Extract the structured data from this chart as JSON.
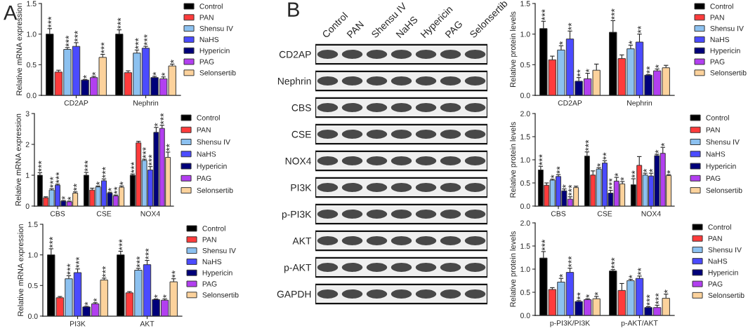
{
  "chart_data": [
    {
      "type": "bar",
      "annotations": [
        "A"
      ],
      "ylabel": "Relative mRNA expression",
      "categories": [
        "CD2AP",
        "Nephrin"
      ],
      "ylim": [
        0,
        1.5
      ],
      "yticks": [
        {
          "value": 0,
          "label": "0.0"
        },
        0.5,
        {
          "value": 1,
          "label": "1.0"
        },
        1.5
      ],
      "legend": "right",
      "series": [
        {
          "name": "Control",
          "color": "#000000",
          "values": [
            1.0,
            1.0
          ],
          "errors": [
            0.09,
            0.07
          ],
          "value_labels": [
            "***",
            "***"
          ]
        },
        {
          "name": "PAN",
          "color": "#ff3b3b",
          "values": [
            0.38,
            0.37
          ],
          "errors": [
            0.03,
            0.03
          ]
        },
        {
          "name": "Shensu IV",
          "color": "#8cc1f0",
          "values": [
            0.75,
            0.69
          ],
          "errors": [
            0.03,
            0.05
          ],
          "value_labels": [
            "***",
            "***"
          ]
        },
        {
          "name": "NaHS",
          "color": "#4b4bff",
          "values": [
            0.8,
            0.77
          ],
          "errors": [
            0.06,
            0.03
          ],
          "value_labels": [
            "***",
            "***"
          ]
        },
        {
          "name": "Hypericin",
          "color": "#00007a",
          "values": [
            0.25,
            0.29
          ],
          "errors": [
            0.01,
            0.02
          ],
          "value_labels": [
            "*",
            "*"
          ]
        },
        {
          "name": "PAG",
          "color": "#b23ff0",
          "values": [
            0.29,
            0.27
          ],
          "errors": [
            0.02,
            0.03
          ],
          "value_labels": [
            "*",
            "*"
          ]
        },
        {
          "name": "Selonsertib",
          "color": "#fcd29c",
          "values": [
            0.62,
            0.48
          ],
          "errors": [
            0.05,
            0.03
          ],
          "value_labels": [
            "***",
            "*"
          ]
        }
      ]
    },
    {
      "type": "bar",
      "ylabel": "Relative mRNA expression",
      "categories": [
        "CBS",
        "CSE",
        "NOX4"
      ],
      "ylim": [
        0,
        3
      ],
      "yticks": [
        0,
        1,
        2,
        3
      ],
      "legend": "right",
      "series": [
        {
          "name": "Control",
          "color": "#000000",
          "values": [
            1.0,
            1.0,
            1.0
          ],
          "errors": [
            0.08,
            0.09,
            0.04
          ],
          "value_labels": [
            "***",
            "***",
            "***"
          ]
        },
        {
          "name": "PAN",
          "color": "#ff3b3b",
          "values": [
            0.27,
            0.52,
            2.05
          ],
          "errors": [
            0.03,
            0.06,
            0.05
          ]
        },
        {
          "name": "Shensu IV",
          "color": "#8cc1f0",
          "values": [
            0.52,
            0.62,
            1.48
          ],
          "errors": [
            0.04,
            0.03,
            0.04
          ],
          "value_labels": [
            "***",
            "*",
            "***"
          ]
        },
        {
          "name": "NaHS",
          "color": "#4b4bff",
          "values": [
            0.68,
            0.82,
            1.17
          ],
          "errors": [
            0.03,
            0.06,
            0.11
          ],
          "value_labels": [
            "***",
            "***",
            "***"
          ]
        },
        {
          "name": "Hypericin",
          "color": "#00007a",
          "values": [
            0.16,
            0.42,
            2.39
          ],
          "errors": [
            0.02,
            0.03,
            0.16
          ],
          "value_labels": [
            "*",
            "*",
            "*"
          ]
        },
        {
          "name": "PAG",
          "color": "#b23ff0",
          "values": [
            0.14,
            0.33,
            2.52
          ],
          "errors": [
            0.02,
            0.03,
            0.1
          ],
          "value_labels": [
            "*",
            "**",
            "***"
          ]
        },
        {
          "name": "Selonsertib",
          "color": "#fcd29c",
          "values": [
            0.42,
            0.61,
            1.58
          ],
          "errors": [
            0.04,
            0.04,
            0.17
          ],
          "value_labels": [
            "**",
            "*",
            "**"
          ]
        }
      ]
    },
    {
      "type": "bar",
      "ylabel": "Relative mRNA expression",
      "categories": [
        "PI3K",
        "AKT"
      ],
      "ylim": [
        0,
        1.5
      ],
      "yticks": [
        {
          "value": 0,
          "label": "0.0"
        },
        0.5,
        {
          "value": 1,
          "label": "1.0"
        },
        1.5
      ],
      "legend": "right",
      "series": [
        {
          "name": "Control",
          "color": "#000000",
          "values": [
            1.0,
            1.0
          ],
          "errors": [
            0.1,
            0.06
          ],
          "value_labels": [
            "***",
            "***"
          ]
        },
        {
          "name": "PAN",
          "color": "#ff3b3b",
          "values": [
            0.3,
            0.38
          ],
          "errors": [
            0.02,
            0.02
          ]
        },
        {
          "name": "Shensu IV",
          "color": "#8cc1f0",
          "values": [
            0.61,
            0.75
          ],
          "errors": [
            0.05,
            0.03
          ],
          "value_labels": [
            "***",
            "***"
          ]
        },
        {
          "name": "NaHS",
          "color": "#4b4bff",
          "values": [
            0.71,
            0.84
          ],
          "errors": [
            0.06,
            0.07
          ],
          "value_labels": [
            "***",
            "***"
          ]
        },
        {
          "name": "Hypericin",
          "color": "#00007a",
          "values": [
            0.15,
            0.27
          ],
          "errors": [
            0.01,
            0.01
          ],
          "value_labels": [
            "*",
            "*"
          ]
        },
        {
          "name": "PAG",
          "color": "#b23ff0",
          "values": [
            0.2,
            0.26
          ],
          "errors": [
            0.02,
            0.02
          ],
          "value_labels": [
            "*",
            "*"
          ]
        },
        {
          "name": "Selonsertib",
          "color": "#fcd29c",
          "values": [
            0.59,
            0.56
          ],
          "errors": [
            0.03,
            0.05
          ],
          "value_labels": [
            "***",
            "**"
          ]
        }
      ]
    },
    {
      "type": "other",
      "annotations": [
        "B"
      ],
      "categories": [
        "Control",
        "PAN",
        "Shensu IV",
        "NaHS",
        "Hypericin",
        "PAG",
        "Selonsertib"
      ],
      "y_categories": [
        "CD2AP",
        "Nephrin",
        "CBS",
        "CSE",
        "NOX4",
        "PI3K",
        "p-PI3K",
        "AKT",
        "p-AKT",
        "GAPDH"
      ]
    },
    {
      "type": "bar",
      "ylabel": "Relative protein levels",
      "categories": [
        "CD2AP",
        "Nephrin"
      ],
      "ylim": [
        0,
        1.5
      ],
      "yticks": [
        {
          "value": 0,
          "label": "0.0"
        },
        0.5,
        {
          "value": 1,
          "label": "1.0"
        },
        1.5
      ],
      "legend": "right",
      "series": [
        {
          "name": "Control",
          "color": "#000000",
          "values": [
            1.09,
            1.03
          ],
          "errors": [
            0.12,
            0.19
          ],
          "value_labels": [
            "***",
            "***"
          ]
        },
        {
          "name": "PAN",
          "color": "#ff3b3b",
          "values": [
            0.58,
            0.6
          ],
          "errors": [
            0.06,
            0.06
          ]
        },
        {
          "name": "Shensu IV",
          "color": "#8cc1f0",
          "values": [
            0.74,
            0.76
          ],
          "errors": [
            0.07,
            0.06
          ],
          "value_labels": [
            "*",
            "*"
          ]
        },
        {
          "name": "NaHS",
          "color": "#4b4bff",
          "values": [
            0.92,
            0.87
          ],
          "errors": [
            0.13,
            0.13
          ],
          "value_labels": [
            "**",
            "**"
          ]
        },
        {
          "name": "Hypericin",
          "color": "#00007a",
          "values": [
            0.23,
            0.33
          ],
          "errors": [
            0.06,
            0.01
          ],
          "value_labels": [
            "**",
            "**"
          ]
        },
        {
          "name": "PAG",
          "color": "#b23ff0",
          "values": [
            0.27,
            0.4
          ],
          "errors": [
            0.09,
            0.03
          ],
          "value_labels": [
            "*",
            "*"
          ]
        },
        {
          "name": "Selonsertib",
          "color": "#fcd29c",
          "values": [
            0.41,
            0.45
          ],
          "errors": [
            0.1,
            0.04
          ]
        }
      ]
    },
    {
      "type": "bar",
      "ylabel": "Relative protein levels",
      "categories": [
        "CBS",
        "CSE",
        "NOX4"
      ],
      "ylim": [
        0,
        2
      ],
      "yticks": [
        {
          "value": 0,
          "label": "0.0"
        },
        0.5,
        {
          "value": 1,
          "label": "1.0"
        },
        1.5,
        {
          "value": 2,
          "label": "2.0"
        }
      ],
      "legend": "right",
      "series": [
        {
          "name": "Control",
          "color": "#000000",
          "values": [
            0.78,
            1.08,
            0.46
          ],
          "errors": [
            0.08,
            0.09,
            0.13
          ],
          "value_labels": [
            "***",
            "***",
            "**"
          ]
        },
        {
          "name": "PAN",
          "color": "#ff3b3b",
          "values": [
            0.45,
            0.67,
            0.88
          ],
          "errors": [
            0.05,
            0.09,
            0.19
          ]
        },
        {
          "name": "Shensu IV",
          "color": "#8cc1f0",
          "values": [
            0.56,
            0.8,
            0.67
          ],
          "errors": [
            0.02,
            0.03,
            0.04
          ],
          "value_labels": [
            "*",
            "*",
            "*"
          ]
        },
        {
          "name": "NaHS",
          "color": "#4b4bff",
          "values": [
            0.64,
            0.93,
            0.65
          ],
          "errors": [
            0.04,
            0.05,
            0.06
          ],
          "value_labels": [
            "**",
            "**",
            "*"
          ]
        },
        {
          "name": "Hypericin",
          "color": "#00007a",
          "values": [
            0.33,
            0.28,
            1.09
          ],
          "errors": [
            0.04,
            0.06,
            0.03
          ],
          "value_labels": [
            "*",
            "***",
            "*"
          ]
        },
        {
          "name": "PAG",
          "color": "#b23ff0",
          "values": [
            0.15,
            0.54,
            1.14
          ],
          "errors": [
            0.05,
            0.08,
            0.13
          ],
          "value_labels": [
            "***",
            "*",
            "*"
          ]
        },
        {
          "name": "Selonsertib",
          "color": "#fcd29c",
          "values": [
            0.4,
            0.48,
            0.66
          ],
          "errors": [
            0.03,
            0.05,
            0.02
          ],
          "value_labels": [
            null,
            "*",
            "*"
          ]
        }
      ]
    },
    {
      "type": "bar",
      "ylabel": "Relative protein levels",
      "categories": [
        "p-PI3K/PI3K",
        "p-AKT/AKT"
      ],
      "ylim": [
        0,
        2
      ],
      "yticks": [
        {
          "value": 0,
          "label": "0.0"
        },
        0.5,
        {
          "value": 1,
          "label": "1.0"
        },
        1.5,
        {
          "value": 2,
          "label": "2.0"
        }
      ],
      "legend": "right",
      "series": [
        {
          "name": "Control",
          "color": "#000000",
          "values": [
            1.24,
            0.96
          ],
          "errors": [
            0.14,
            0.03
          ],
          "value_labels": [
            "***",
            "***"
          ]
        },
        {
          "name": "PAN",
          "color": "#ff3b3b",
          "values": [
            0.56,
            0.54
          ],
          "errors": [
            0.04,
            0.15
          ]
        },
        {
          "name": "Shensu IV",
          "color": "#8cc1f0",
          "values": [
            0.72,
            0.75
          ],
          "errors": [
            0.08,
            0.03
          ],
          "value_labels": [
            "*",
            "*"
          ]
        },
        {
          "name": "NaHS",
          "color": "#4b4bff",
          "values": [
            0.93,
            0.8
          ],
          "errors": [
            0.09,
            0.05
          ],
          "value_labels": [
            "***",
            "**"
          ]
        },
        {
          "name": "Hypericin",
          "color": "#00007a",
          "values": [
            0.3,
            0.17
          ],
          "errors": [
            0.02,
            0.02
          ],
          "value_labels": [
            "**",
            "***"
          ]
        },
        {
          "name": "PAG",
          "color": "#b23ff0",
          "values": [
            0.34,
            0.17
          ],
          "errors": [
            0.02,
            0.05
          ],
          "value_labels": [
            "*",
            "***"
          ]
        },
        {
          "name": "Selonsertib",
          "color": "#fcd29c",
          "values": [
            0.36,
            0.37
          ],
          "errors": [
            0.05,
            0.09
          ],
          "value_labels": [
            "*",
            "*"
          ]
        }
      ]
    }
  ]
}
